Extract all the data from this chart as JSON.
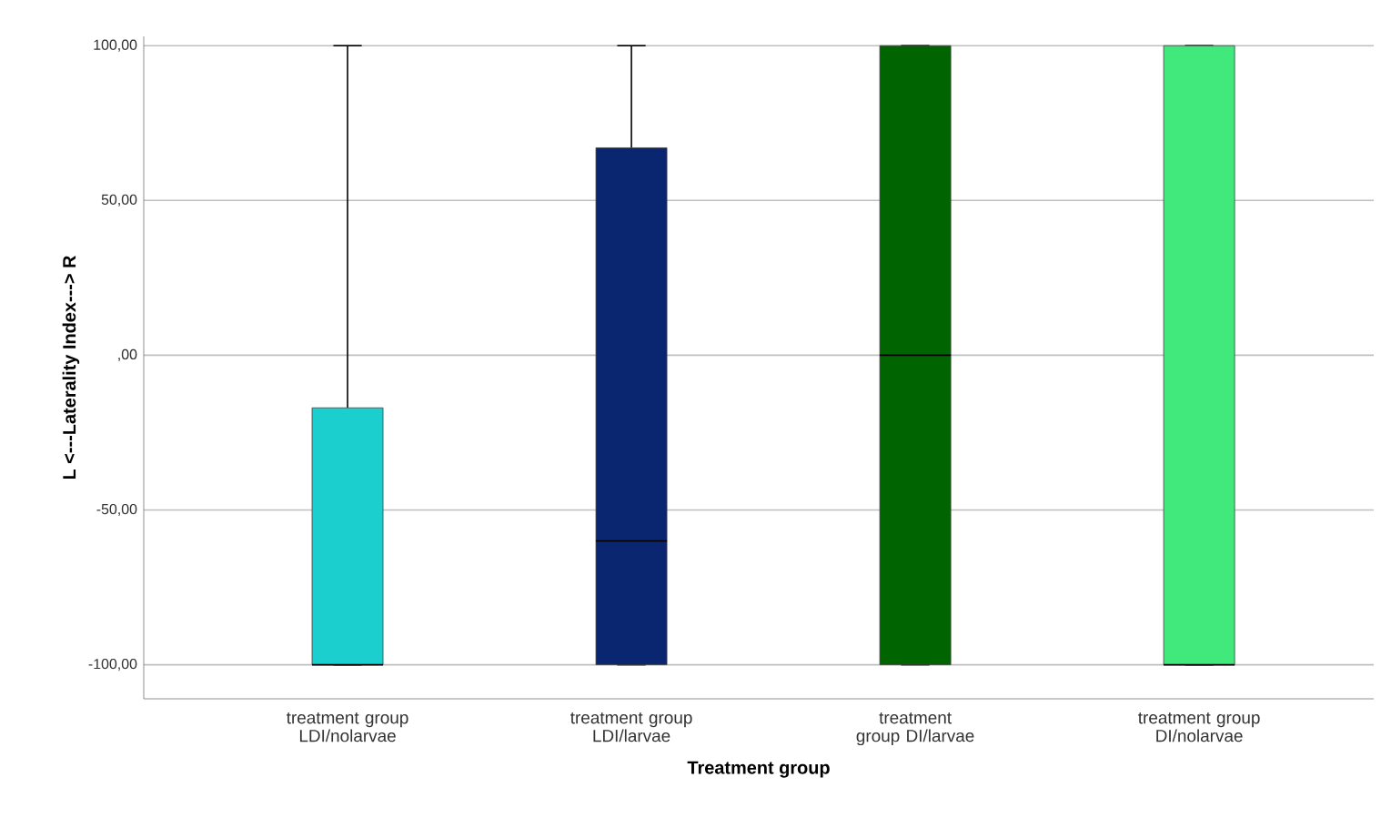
{
  "chart_data": {
    "type": "box",
    "categories": [
      "treatment group LDI/nolarvae",
      "treatment group LDI/larvae",
      "treatment group DI/larvae",
      "treatment group DI/nolarvae"
    ],
    "boxes": [
      {
        "low": -100,
        "q1": -100,
        "median": -100,
        "q3": -17,
        "high": 100
      },
      {
        "low": -100,
        "q1": -100,
        "median": -60,
        "q3": 67,
        "high": 100
      },
      {
        "low": -100,
        "q1": -100,
        "median": 0,
        "q3": 100,
        "high": 100
      },
      {
        "low": -100,
        "q1": -100,
        "median": -100,
        "q3": 100,
        "high": 100
      }
    ],
    "colors": [
      "#1ccfcf",
      "#0a2670",
      "#006400",
      "#41e87c"
    ],
    "xlabel": "Treatment group",
    "ylabel": "L <---Laterality Index---> R",
    "ylim": [
      -111,
      103
    ],
    "yticks": [
      {
        "value": -100,
        "label": "-100,00"
      },
      {
        "value": -50,
        "label": "-50,00"
      },
      {
        "value": 0,
        "label": ",00"
      },
      {
        "value": 50,
        "label": "50,00"
      },
      {
        "value": 100,
        "label": "100,00"
      }
    ],
    "grid": "y"
  }
}
